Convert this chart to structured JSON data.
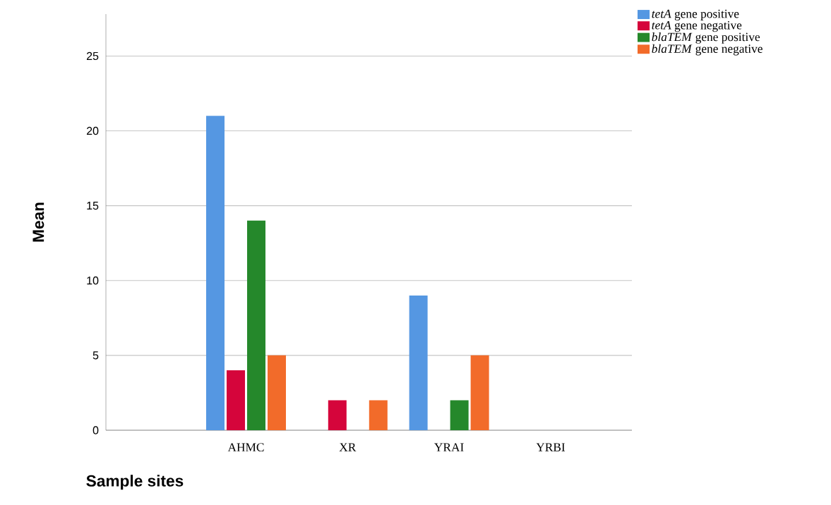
{
  "chart_data": {
    "type": "bar",
    "xlabel": "Sample sites",
    "ylabel": "Mean",
    "categories": [
      "AHMC",
      "XR",
      "YRAI",
      "YRBI"
    ],
    "series": [
      {
        "name": "*tetA* gene positive",
        "color": "#5597e2",
        "values": [
          21,
          0,
          9,
          0
        ]
      },
      {
        "name": "*tetA* gene negative",
        "color": "#d5053b",
        "values": [
          4,
          2,
          0,
          0
        ]
      },
      {
        "name": "*blaTEM* gene positive",
        "color": "#25882b",
        "values": [
          14,
          0,
          2,
          0
        ]
      },
      {
        "name": "*blaTEM* gene negative",
        "color": "#f26b2a",
        "values": [
          5,
          2,
          5,
          0
        ]
      }
    ],
    "ylim": [
      0,
      27.8
    ],
    "yticks": [
      0,
      5,
      10,
      15,
      20,
      25
    ],
    "grid": "y",
    "legend": "top right"
  }
}
